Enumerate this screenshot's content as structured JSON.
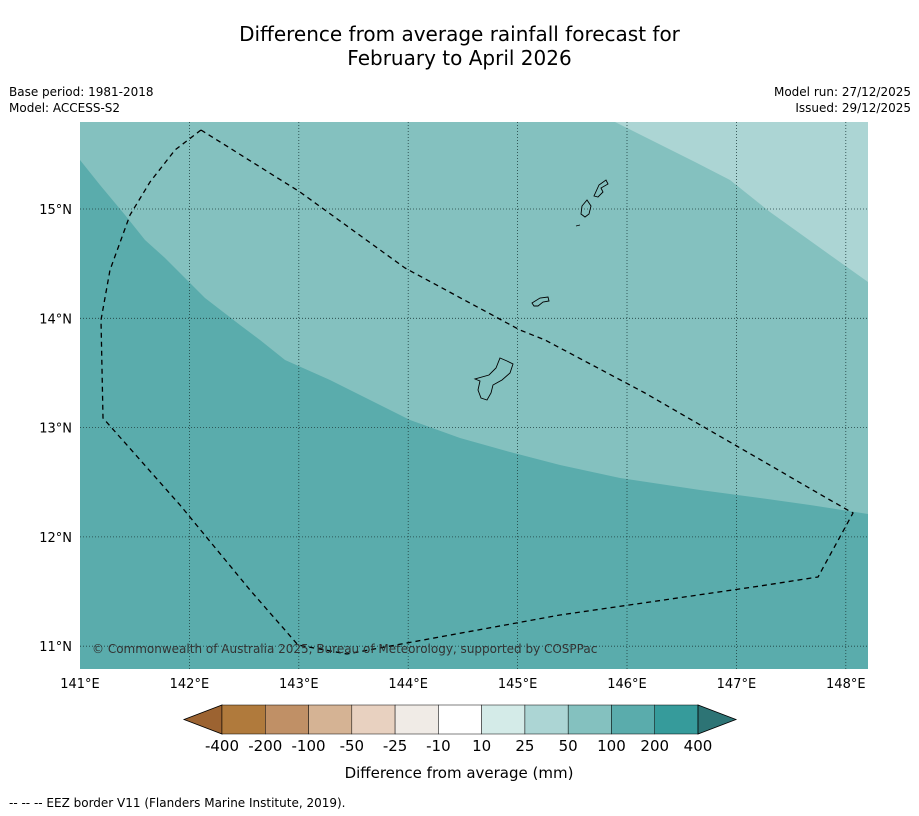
{
  "title": {
    "line1": "Difference from average rainfall forecast for",
    "line2": "February to April 2026"
  },
  "meta": {
    "base_period": "Base period: 1981-2018",
    "model": "Model: ACCESS-S2",
    "model_run": "Model run: 27/12/2025",
    "issued": "Issued: 29/12/2025"
  },
  "map": {
    "lon_ticks": [
      {
        "value": 141,
        "label": "141°E"
      },
      {
        "value": 142,
        "label": "142°E"
      },
      {
        "value": 143,
        "label": "143°E"
      },
      {
        "value": 144,
        "label": "144°E"
      },
      {
        "value": 145,
        "label": "145°E"
      },
      {
        "value": 146,
        "label": "146°E"
      },
      {
        "value": 147,
        "label": "147°E"
      },
      {
        "value": 148,
        "label": "148°E"
      }
    ],
    "lat_ticks": [
      {
        "value": 15,
        "label": "15°N"
      },
      {
        "value": 14,
        "label": "14°N"
      },
      {
        "value": 13,
        "label": "13°N"
      },
      {
        "value": 12,
        "label": "12°N"
      },
      {
        "value": 11,
        "label": "11°N"
      }
    ],
    "copyright": "© Commonwealth of Australia 2025, Bureau of Meteorology, supported by COSPPac",
    "zone_colors": {
      "100_to_200": "#5aacac",
      "50_to_100": "#84c1bf",
      "25_to_50": "#acd5d4"
    }
  },
  "colorbar": {
    "colors": [
      "#9c6331",
      "#b07a3c",
      "#c09066",
      "#d5b394",
      "#e8d1c0",
      "#f0ebe6",
      "#ffffff",
      "#d4ebe8",
      "#acd5d4",
      "#84c1bf",
      "#5aacac",
      "#369b9b",
      "#2d7475"
    ],
    "tick_labels": [
      "-400",
      "-200",
      "-100",
      "-50",
      "-25",
      "-10",
      "10",
      "25",
      "50",
      "100",
      "200",
      "400"
    ],
    "label": "Difference from average (mm)"
  },
  "footnote": "--  --  -- EEZ border V11 (Flanders Marine Institute, 2019)."
}
